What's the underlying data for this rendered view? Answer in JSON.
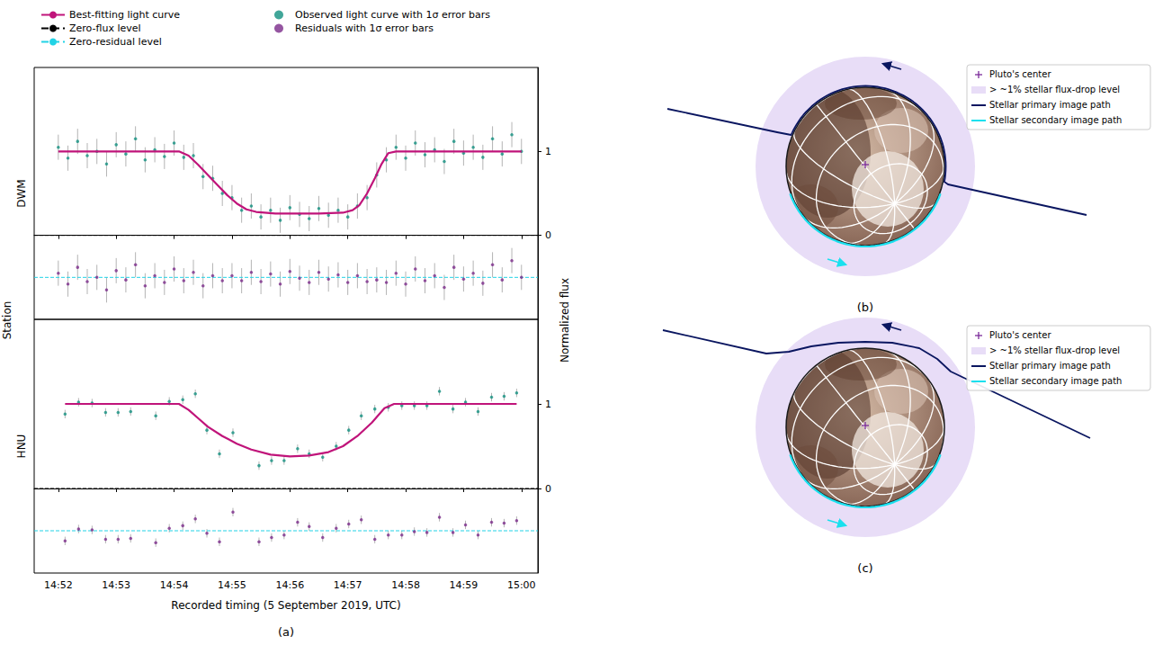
{
  "figure": {
    "panel_label": "(a)",
    "y_label": "Station",
    "y2_label": "Normalized flux",
    "legend": "top"
  },
  "chart_data": [
    {
      "type": "scatter",
      "title": "DWM",
      "tick_labels": "y",
      "xlim": [
        53495,
        54017
      ],
      "xticks": [
        {
          "value": 53520,
          "label": "14:52"
        },
        {
          "value": 53580,
          "label": "14:53"
        },
        {
          "value": 53640,
          "label": "14:54"
        },
        {
          "value": 53700,
          "label": "14:55"
        },
        {
          "value": 53760,
          "label": "14:56"
        },
        {
          "value": 53820,
          "label": "14:57"
        },
        {
          "value": 53880,
          "label": "14:58"
        },
        {
          "value": 53940,
          "label": "14:59"
        },
        {
          "value": 54000,
          "label": "15:00"
        }
      ],
      "ylim": [
        -1,
        2
      ],
      "yticks": [
        0,
        1
      ],
      "series": [
        {
          "name": "Best-fitting light curve",
          "type": "line",
          "color": "#c0147a",
          "x": [
            53520,
            53645,
            53655,
            53665,
            53675,
            53685,
            53695,
            53705,
            53715,
            53725,
            53745,
            53790,
            53815,
            53825,
            53832,
            53840,
            53848,
            53855,
            53862,
            53870,
            54000
          ],
          "values": [
            1,
            1,
            0.95,
            0.84,
            0.72,
            0.6,
            0.48,
            0.38,
            0.31,
            0.28,
            0.26,
            0.26,
            0.27,
            0.3,
            0.36,
            0.5,
            0.68,
            0.85,
            0.98,
            1,
            1
          ]
        },
        {
          "name": "Zero-flux level",
          "type": "hline",
          "line_style": "dashed",
          "color": "#000000",
          "values": [
            0
          ]
        },
        {
          "name": "Zero-residual level",
          "type": "hline",
          "line_style": "dashed",
          "color": "#22d3e6",
          "values": [
            -0.5
          ]
        },
        {
          "name": "Observed light curve with 1σ error bars",
          "type": "scatter",
          "color": "#12907f",
          "x": [
            53520,
            53530,
            53540,
            53550,
            53560,
            53570,
            53580,
            53590,
            53600,
            53610,
            53620,
            53630,
            53640,
            53650,
            53660,
            53670,
            53680,
            53690,
            53700,
            53710,
            53720,
            53730,
            53740,
            53750,
            53760,
            53770,
            53780,
            53790,
            53800,
            53810,
            53820,
            53830,
            53840,
            53850,
            53860,
            53870,
            53880,
            53890,
            53900,
            53910,
            53920,
            53930,
            53940,
            53950,
            53960,
            53970,
            53980,
            53990,
            54000
          ],
          "values": [
            1.05,
            0.92,
            1.12,
            0.95,
            1.0,
            0.85,
            1.08,
            0.97,
            1.15,
            0.9,
            1.02,
            0.94,
            1.1,
            0.93,
            0.95,
            0.7,
            0.68,
            0.5,
            0.45,
            0.3,
            0.35,
            0.22,
            0.3,
            0.18,
            0.33,
            0.25,
            0.2,
            0.32,
            0.24,
            0.3,
            0.22,
            0.35,
            0.45,
            0.72,
            0.9,
            1.05,
            0.92,
            1.1,
            0.96,
            1.02,
            0.88,
            1.12,
            0.98,
            1.05,
            0.93,
            1.15,
            0.97,
            1.2,
            1.0
          ],
          "errors": [
            0.15,
            0.15,
            0.15,
            0.15,
            0.15,
            0.15,
            0.15,
            0.15,
            0.15,
            0.15,
            0.15,
            0.15,
            0.15,
            0.15,
            0.15,
            0.15,
            0.15,
            0.15,
            0.15,
            0.15,
            0.15,
            0.15,
            0.15,
            0.15,
            0.15,
            0.15,
            0.15,
            0.15,
            0.15,
            0.15,
            0.15,
            0.15,
            0.15,
            0.15,
            0.15,
            0.15,
            0.15,
            0.15,
            0.15,
            0.15,
            0.15,
            0.15,
            0.15,
            0.15,
            0.15,
            0.15,
            0.15,
            0.15,
            0.15
          ]
        },
        {
          "name": "Residuals with 1σ error bars",
          "type": "scatter",
          "color": "#7a2a8a",
          "x": [
            53520,
            53530,
            53540,
            53550,
            53560,
            53570,
            53580,
            53590,
            53600,
            53610,
            53620,
            53630,
            53640,
            53650,
            53660,
            53670,
            53680,
            53690,
            53700,
            53710,
            53720,
            53730,
            53740,
            53750,
            53760,
            53770,
            53780,
            53790,
            53800,
            53810,
            53820,
            53830,
            53840,
            53850,
            53860,
            53870,
            53880,
            53890,
            53900,
            53910,
            53920,
            53930,
            53940,
            53950,
            53960,
            53970,
            53980,
            53990,
            54000
          ],
          "values": [
            -0.45,
            -0.58,
            -0.38,
            -0.55,
            -0.5,
            -0.65,
            -0.42,
            -0.53,
            -0.35,
            -0.6,
            -0.48,
            -0.56,
            -0.4,
            -0.54,
            -0.44,
            -0.6,
            -0.48,
            -0.54,
            -0.48,
            -0.54,
            -0.44,
            -0.55,
            -0.46,
            -0.58,
            -0.43,
            -0.51,
            -0.56,
            -0.44,
            -0.52,
            -0.47,
            -0.56,
            -0.48,
            -0.55,
            -0.53,
            -0.56,
            -0.45,
            -0.58,
            -0.4,
            -0.54,
            -0.48,
            -0.62,
            -0.38,
            -0.52,
            -0.45,
            -0.57,
            -0.35,
            -0.53,
            -0.3,
            -0.5
          ],
          "errors": [
            0.15,
            0.15,
            0.15,
            0.15,
            0.15,
            0.15,
            0.15,
            0.15,
            0.15,
            0.15,
            0.15,
            0.15,
            0.15,
            0.15,
            0.15,
            0.15,
            0.15,
            0.15,
            0.15,
            0.15,
            0.15,
            0.15,
            0.15,
            0.15,
            0.15,
            0.15,
            0.15,
            0.15,
            0.15,
            0.15,
            0.15,
            0.15,
            0.15,
            0.15,
            0.15,
            0.15,
            0.15,
            0.15,
            0.15,
            0.15,
            0.15,
            0.15,
            0.15,
            0.15,
            0.15,
            0.15,
            0.15,
            0.15,
            0.15
          ]
        }
      ]
    },
    {
      "type": "scatter",
      "title": "HNU",
      "x_label": "Recorded timing (5 September 2019, UTC)",
      "xlim": [
        53495,
        54017
      ],
      "xticks": [
        {
          "value": 53520,
          "label": "14:52"
        },
        {
          "value": 53580,
          "label": "14:53"
        },
        {
          "value": 53640,
          "label": "14:54"
        },
        {
          "value": 53700,
          "label": "14:55"
        },
        {
          "value": 53760,
          "label": "14:56"
        },
        {
          "value": 53820,
          "label": "14:57"
        },
        {
          "value": 53880,
          "label": "14:58"
        },
        {
          "value": 53940,
          "label": "14:59"
        },
        {
          "value": 54000,
          "label": "15:00"
        }
      ],
      "ylim": [
        -1,
        2
      ],
      "yticks": [
        0,
        1
      ],
      "series": [
        {
          "name": "Best-fitting light curve",
          "type": "line",
          "color": "#c0147a",
          "x": [
            53527,
            53645,
            53655,
            53665,
            53675,
            53690,
            53705,
            53720,
            53740,
            53760,
            53780,
            53800,
            53815,
            53830,
            53845,
            53858,
            53868,
            53995
          ],
          "values": [
            1,
            1,
            0.93,
            0.83,
            0.73,
            0.62,
            0.53,
            0.46,
            0.4,
            0.38,
            0.39,
            0.43,
            0.5,
            0.62,
            0.78,
            0.95,
            1,
            1
          ]
        },
        {
          "name": "Zero-flux level",
          "type": "hline",
          "line_style": "dashed",
          "color": "#000000",
          "values": [
            0
          ]
        },
        {
          "name": "Zero-residual level",
          "type": "hline",
          "line_style": "dashed",
          "color": "#22d3e6",
          "values": [
            -0.5
          ]
        },
        {
          "name": "Observed light curve with 1σ error bars",
          "type": "scatter",
          "color": "#12907f",
          "x": [
            53527,
            53541,
            53555,
            53569,
            53582,
            53595,
            53621,
            53635,
            53649,
            53662,
            53674,
            53687,
            53701,
            53728,
            53741,
            53754,
            53768,
            53780,
            53794,
            53808,
            53821,
            53834,
            53848,
            53862,
            53876,
            53889,
            53902,
            53915,
            53929,
            53942,
            53955,
            53969,
            53982,
            53995
          ],
          "values": [
            0.88,
            1.02,
            1.01,
            0.9,
            0.9,
            0.91,
            0.86,
            1.03,
            1.05,
            1.12,
            0.69,
            0.41,
            0.66,
            0.27,
            0.33,
            0.33,
            0.47,
            0.41,
            0.37,
            0.5,
            0.69,
            0.86,
            0.94,
            0.96,
            0.98,
            0.98,
            0.98,
            1.15,
            0.94,
            1.02,
            0.91,
            1.08,
            1.09,
            1.13
          ],
          "errors": [
            0.05,
            0.05,
            0.05,
            0.05,
            0.05,
            0.05,
            0.05,
            0.05,
            0.05,
            0.05,
            0.05,
            0.05,
            0.05,
            0.05,
            0.05,
            0.05,
            0.05,
            0.05,
            0.05,
            0.05,
            0.05,
            0.05,
            0.05,
            0.05,
            0.05,
            0.05,
            0.05,
            0.05,
            0.05,
            0.05,
            0.05,
            0.05,
            0.05,
            0.05
          ]
        },
        {
          "name": "Residuals with 1σ error bars",
          "type": "scatter",
          "color": "#7a2a8a",
          "x": [
            53527,
            53541,
            53555,
            53569,
            53582,
            53595,
            53621,
            53635,
            53649,
            53662,
            53674,
            53687,
            53701,
            53728,
            53741,
            53754,
            53768,
            53780,
            53794,
            53808,
            53821,
            53834,
            53848,
            53862,
            53876,
            53889,
            53902,
            53915,
            53929,
            53942,
            53955,
            53969,
            53982,
            53995
          ],
          "values": [
            -0.62,
            -0.48,
            -0.49,
            -0.6,
            -0.6,
            -0.59,
            -0.64,
            -0.47,
            -0.44,
            -0.36,
            -0.53,
            -0.63,
            -0.28,
            -0.63,
            -0.58,
            -0.55,
            -0.4,
            -0.45,
            -0.58,
            -0.47,
            -0.42,
            -0.37,
            -0.6,
            -0.55,
            -0.55,
            -0.51,
            -0.52,
            -0.34,
            -0.52,
            -0.43,
            -0.55,
            -0.4,
            -0.41,
            -0.38
          ],
          "errors": [
            0.05,
            0.05,
            0.05,
            0.05,
            0.05,
            0.05,
            0.05,
            0.05,
            0.05,
            0.05,
            0.05,
            0.05,
            0.05,
            0.05,
            0.05,
            0.05,
            0.05,
            0.05,
            0.05,
            0.05,
            0.05,
            0.05,
            0.05,
            0.05,
            0.05,
            0.05,
            0.05,
            0.05,
            0.05,
            0.05,
            0.05,
            0.05,
            0.05,
            0.05
          ]
        }
      ]
    }
  ],
  "diagrams": [
    {
      "label": "(b)",
      "legend": [
        {
          "name": "Pluto's center",
          "color": "#7a2a9a",
          "marker": "plus"
        },
        {
          "name": "> ~1% stellar flux-drop level",
          "color": "#e8ddf7",
          "marker": "square"
        },
        {
          "name": "Stellar primary image path",
          "color": "#0a1660",
          "marker": "line"
        },
        {
          "name": "Stellar secondary image path",
          "color": "#19e0ee",
          "marker": "line"
        }
      ]
    },
    {
      "label": "(c)",
      "legend": [
        {
          "name": "Pluto's center",
          "color": "#7a2a9a",
          "marker": "plus"
        },
        {
          "name": "> ~1% stellar flux-drop level",
          "color": "#e8ddf7",
          "marker": "square"
        },
        {
          "name": "Stellar primary image path",
          "color": "#0a1660",
          "marker": "line"
        },
        {
          "name": "Stellar secondary image path",
          "color": "#19e0ee",
          "marker": "line"
        }
      ]
    }
  ]
}
